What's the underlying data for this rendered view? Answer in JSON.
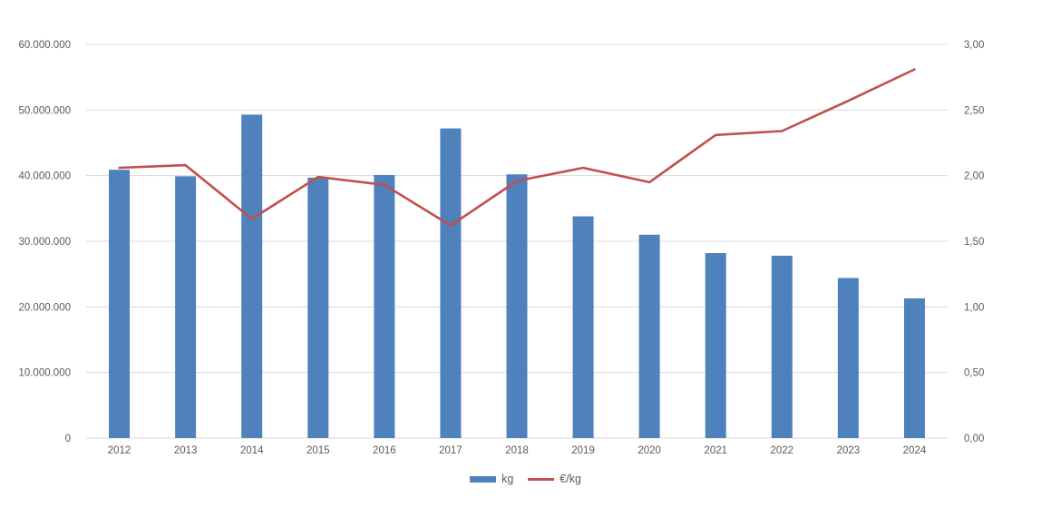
{
  "chart_data": {
    "type": "combo",
    "title": "",
    "xlabel": "",
    "ylabel_left": "",
    "ylabel_right": "",
    "categories": [
      "2012",
      "2013",
      "2014",
      "2015",
      "2016",
      "2017",
      "2018",
      "2019",
      "2020",
      "2021",
      "2022",
      "2023",
      "2024"
    ],
    "series": [
      {
        "name": "kg",
        "type": "bar",
        "axis": "left",
        "color": "#4F81BD",
        "values": [
          40900000,
          39900000,
          49300000,
          39700000,
          40100000,
          47200000,
          40200000,
          33800000,
          31000000,
          28200000,
          27800000,
          24400000,
          21300000
        ]
      },
      {
        "name": "€/kg",
        "type": "line",
        "axis": "right",
        "color": "#C0504D",
        "values": [
          2.06,
          2.08,
          1.67,
          1.99,
          1.93,
          1.62,
          1.96,
          2.06,
          1.95,
          2.31,
          2.34,
          2.57,
          2.81
        ]
      }
    ],
    "left_axis": {
      "min": 0,
      "max": 60000000,
      "tick_labels": [
        "60.000.000",
        "50.000.000",
        "40.000.000",
        "30.000.000",
        "20.000.000",
        "10.000.000",
        "0"
      ]
    },
    "right_axis": {
      "min": 0,
      "max": 3,
      "tick_labels": [
        "3,00",
        "2,50",
        "2,00",
        "1,50",
        "1,00",
        "0,50",
        "0,00"
      ]
    },
    "legend": {
      "position": "bottom",
      "entries": [
        "kg",
        "€/kg"
      ]
    },
    "grid": true,
    "colors": {
      "grid": "#D9D9D9",
      "text": "#595959",
      "background": "#FFFFFF"
    }
  }
}
